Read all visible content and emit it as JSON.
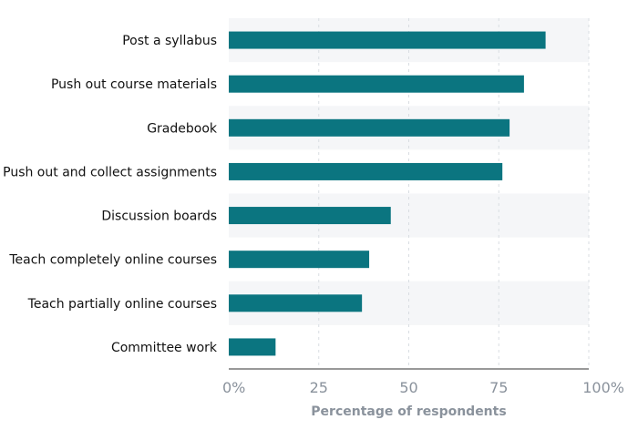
{
  "chart_data": {
    "type": "bar",
    "orientation": "horizontal",
    "categories": [
      "Post a syllabus",
      "Push out course materials",
      "Gradebook",
      "Push out and collect assignments",
      "Discussion boards",
      "Teach completely online courses",
      "Teach partially online courses",
      "Committee work"
    ],
    "values": [
      88,
      82,
      78,
      76,
      45,
      39,
      37,
      13
    ],
    "xlabel": "Percentage of respondents",
    "xlim": [
      0,
      100
    ],
    "xticks": [
      0,
      25,
      50,
      75,
      100
    ],
    "xtick_labels": [
      "0%",
      "25",
      "50",
      "75",
      "100%"
    ],
    "grid": "vertical-dashed",
    "bar_color": "#0b7580",
    "band_color": "#f5f6f8"
  }
}
